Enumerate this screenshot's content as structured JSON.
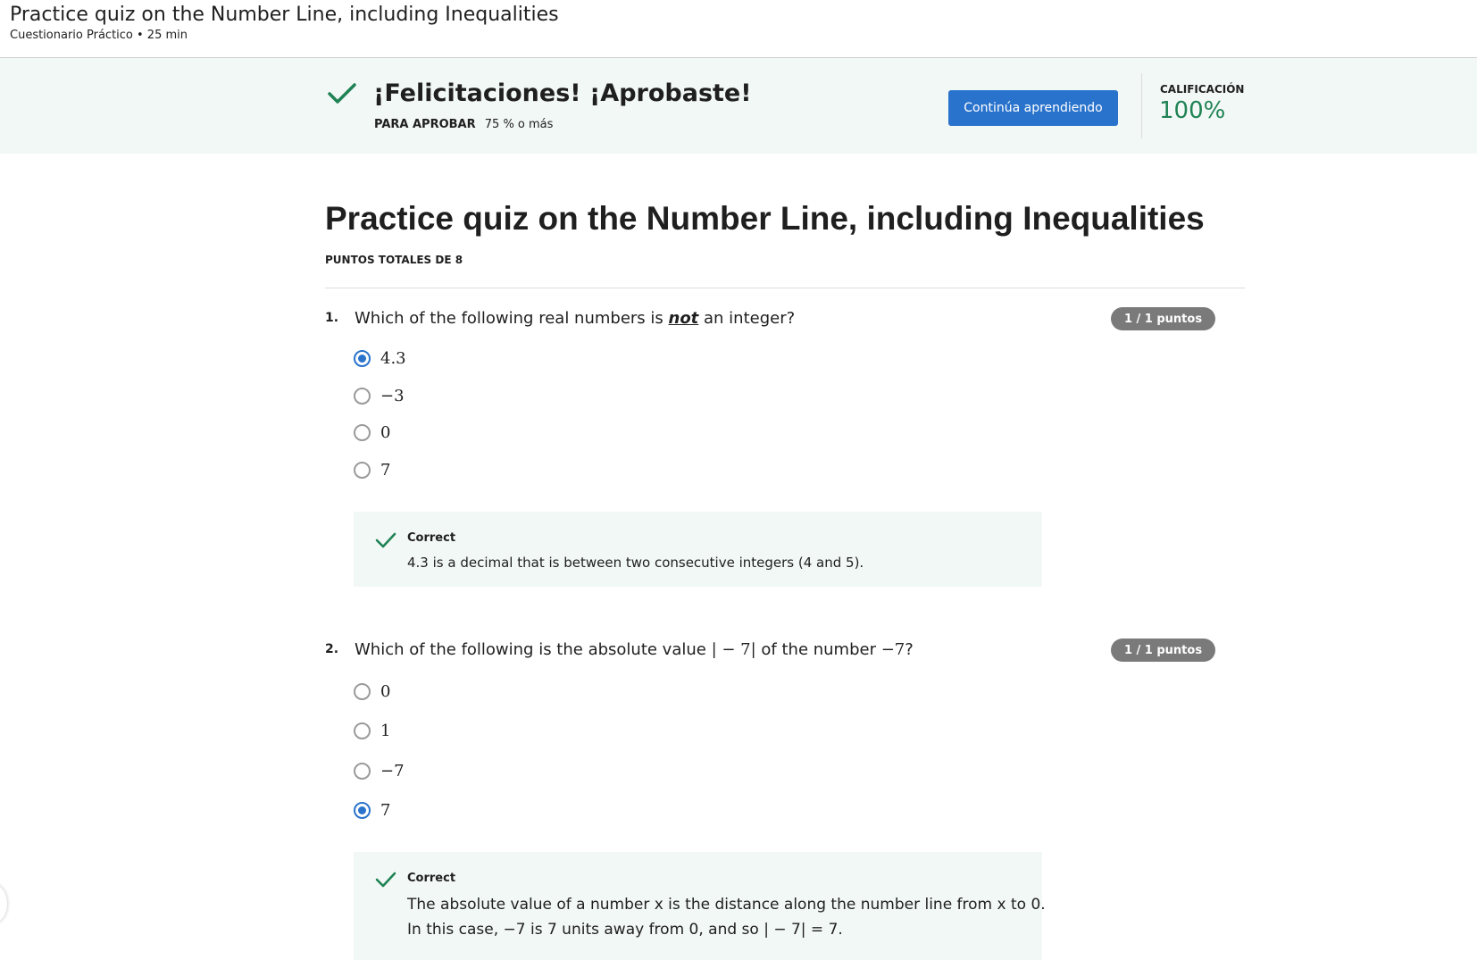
{
  "header": {
    "title": "Practice quiz on the Number Line, including Inequalities",
    "subtitle": "Cuestionario Práctico • 25 min"
  },
  "banner": {
    "heading": "¡Felicitaciones! ¡Aprobaste!",
    "pass_label": "PARA APROBAR",
    "pass_value": "75 % o más",
    "continue_label": "Continúa aprendiendo",
    "grade_label": "CALIFICACIÓN",
    "grade_value": "100%",
    "success_color": "#1f8354",
    "accent_color": "#2a73cc"
  },
  "main": {
    "title": "Practice quiz on the Number Line, including Inequalities",
    "total_points": "PUNTOS TOTALES DE 8"
  },
  "questions": [
    {
      "number": "1.",
      "text_before": "Which of the following real numbers is ",
      "text_emphasis": "not",
      "text_after": " an integer?",
      "points": "1 / 1 puntos",
      "options": [
        {
          "label": "4.3",
          "selected": true
        },
        {
          "label": "−3",
          "selected": false
        },
        {
          "label": "0",
          "selected": false
        },
        {
          "label": "7",
          "selected": false
        }
      ],
      "feedback": {
        "label": "Correct",
        "text": "4.3 is a decimal that is between two consecutive integers (4 and 5)."
      }
    },
    {
      "number": "2.",
      "text_before": "Which of the following is the absolute value ",
      "text_math": "| − 7|",
      "text_middle": " of the number ",
      "text_math2": "−7",
      "text_after": "?",
      "points": "1 / 1 puntos",
      "options": [
        {
          "label": "0",
          "selected": false
        },
        {
          "label": "1",
          "selected": false
        },
        {
          "label": "−7",
          "selected": false
        },
        {
          "label": "7",
          "selected": true
        }
      ],
      "feedback": {
        "label": "Correct",
        "line1": "The absolute value of a number x is the distance along the number line from x to 0.",
        "line2": "In this case, −7 is 7 units away from 0, and so | − 7| = 7."
      }
    }
  ]
}
